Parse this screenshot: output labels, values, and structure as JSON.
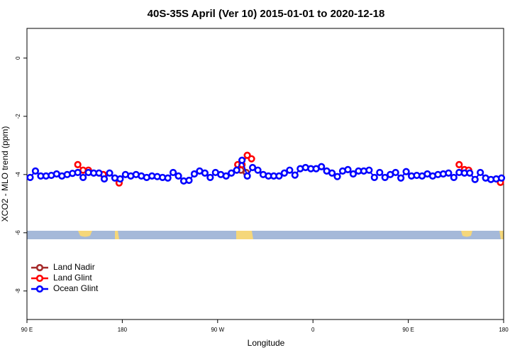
{
  "chart_data": {
    "type": "line",
    "title": "40S-35S April (Ver 10)   2015-01-01 to 2020-12-18",
    "x_label": "Longitude",
    "y_label": "XCO2 - MLO trend (ppm)",
    "xlim": [
      90,
      540
    ],
    "xticks": [
      {
        "value": 90,
        "label": "90 E"
      },
      180,
      {
        "value": 270,
        "label": "90 W"
      },
      {
        "value": 360,
        "label": "0"
      },
      {
        "value": 450,
        "label": "90 E"
      },
      {
        "value": 540,
        "label": "180"
      }
    ],
    "ylim": [
      -8.98,
      1.02
    ],
    "yticks": [
      0,
      -2,
      -4,
      -6,
      -8
    ],
    "legend": "bottomleft",
    "series": [
      {
        "name": "Land Nadir",
        "color": "#a52a2a",
        "x": [
          292,
          297
        ],
        "values": [
          -3.85,
          -3.93
        ]
      },
      {
        "name": "Land Glint",
        "color": "#ff0000",
        "x": [
          138,
          143,
          148,
          162,
          177,
          289,
          293,
          298,
          302,
          498,
          503,
          507,
          537
        ],
        "values": [
          -3.66,
          -3.85,
          -3.85,
          -4.0,
          -4.29,
          -3.66,
          -3.66,
          -3.34,
          -3.46,
          -3.66,
          -3.83,
          -3.85,
          -4.27
        ]
      },
      {
        "name": "Ocean Glint",
        "color": "#0000ff",
        "x": [
          93,
          98,
          103,
          108,
          113,
          118,
          123,
          128,
          133,
          138,
          143,
          148,
          153,
          158,
          163,
          168,
          173,
          178,
          183,
          188,
          193,
          198,
          203,
          208,
          213,
          218,
          223,
          228,
          233,
          238,
          243,
          248,
          253,
          258,
          263,
          268,
          273,
          278,
          283,
          288,
          293,
          298,
          303,
          308,
          313,
          318,
          323,
          328,
          333,
          338,
          343,
          348,
          353,
          358,
          363,
          368,
          373,
          378,
          383,
          388,
          393,
          398,
          403,
          408,
          413,
          418,
          423,
          428,
          433,
          438,
          443,
          448,
          453,
          458,
          463,
          468,
          473,
          478,
          483,
          488,
          493,
          498,
          503,
          508,
          513,
          518,
          523,
          528,
          533,
          538
        ],
        "values": [
          -4.1,
          -3.88,
          -4.05,
          -4.05,
          -4.03,
          -3.98,
          -4.05,
          -4.0,
          -3.96,
          -3.93,
          -4.1,
          -3.93,
          -3.95,
          -3.95,
          -4.15,
          -3.95,
          -4.12,
          -4.15,
          -4.0,
          -4.05,
          -4.0,
          -4.05,
          -4.1,
          -4.05,
          -4.07,
          -4.1,
          -4.12,
          -3.93,
          -4.05,
          -4.22,
          -4.2,
          -3.98,
          -3.88,
          -3.95,
          -4.1,
          -3.93,
          -4.0,
          -4.05,
          -3.95,
          -3.85,
          -3.51,
          -4.05,
          -3.76,
          -3.85,
          -4.0,
          -4.05,
          -4.05,
          -4.05,
          -3.95,
          -3.85,
          -4.02,
          -3.8,
          -3.76,
          -3.8,
          -3.8,
          -3.73,
          -3.88,
          -3.95,
          -4.07,
          -3.88,
          -3.83,
          -3.98,
          -3.88,
          -3.88,
          -3.85,
          -4.1,
          -3.93,
          -4.1,
          -4.0,
          -3.93,
          -4.12,
          -3.9,
          -4.05,
          -4.03,
          -4.05,
          -3.98,
          -4.05,
          -4.0,
          -3.98,
          -3.95,
          -4.1,
          -3.93,
          -3.95,
          -3.95,
          -4.17,
          -3.93,
          -4.12,
          -4.17,
          -4.15,
          -4.12
        ]
      }
    ]
  }
}
